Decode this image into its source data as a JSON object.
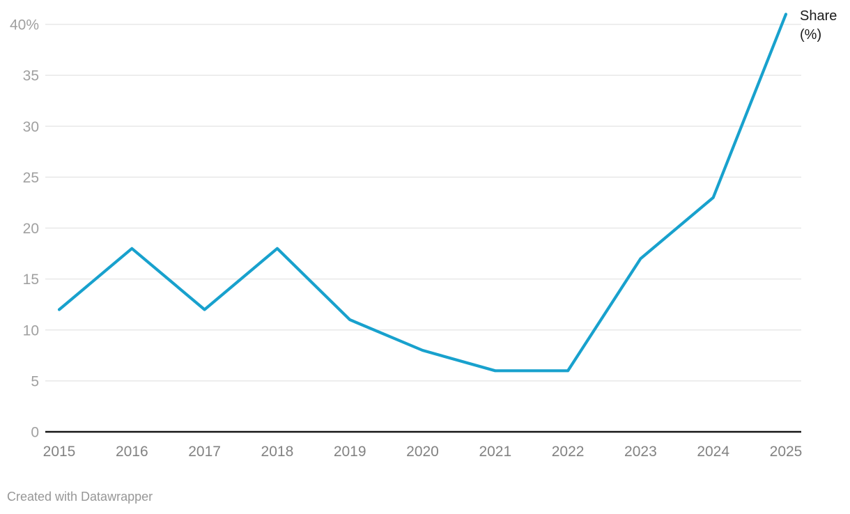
{
  "chart_data": {
    "type": "line",
    "x": [
      2015,
      2016,
      2017,
      2018,
      2019,
      2020,
      2021,
      2022,
      2023,
      2024,
      2025
    ],
    "series": [
      {
        "name": "Share (%)",
        "values": [
          12,
          18,
          12,
          18,
          11,
          8,
          6,
          6,
          17,
          23,
          41
        ]
      }
    ],
    "yticks": [
      0,
      5,
      10,
      15,
      20,
      25,
      30,
      35,
      40
    ],
    "ytick_labels": [
      "0",
      "5",
      "10",
      "15",
      "20",
      "25",
      "30",
      "35",
      "40%"
    ],
    "ylim": [
      0,
      41
    ],
    "grid": "horizontal",
    "legend_position": "end-of-line",
    "colors": {
      "line": "#18a1cd",
      "gridline": "#e8e8e8",
      "axis": "#161616",
      "ytick_text": "#a0a0a0",
      "xtick_text": "#828282",
      "series_label_text": "#1a1a1a",
      "credit_text": "#979797"
    }
  },
  "footer": {
    "credit": "Created with Datawrapper"
  }
}
